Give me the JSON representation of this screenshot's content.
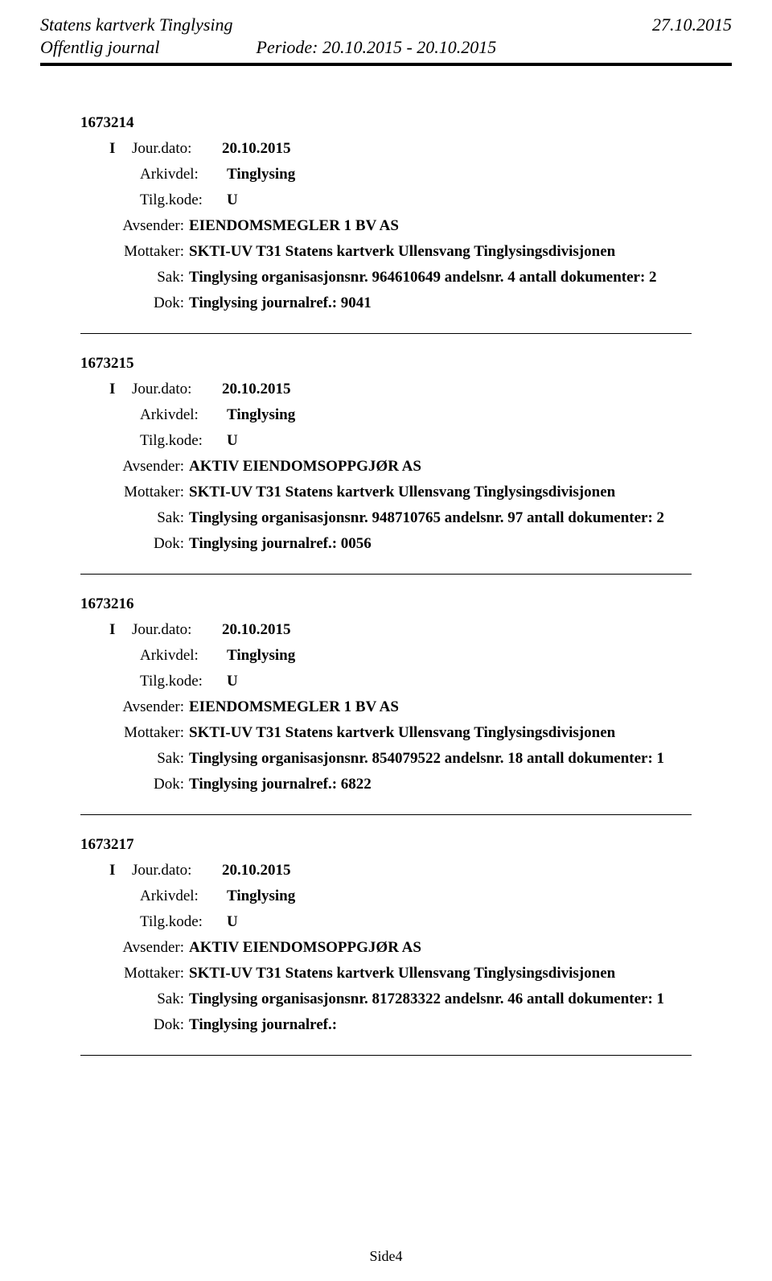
{
  "header": {
    "title_left": "Statens kartverk Tinglysing",
    "title_right": "27.10.2015",
    "subtitle": "Offentlig journal",
    "periode": "Periode: 20.10.2015 - 20.10.2015"
  },
  "labels": {
    "jour_dato": "Jour.dato:",
    "arkivdel": "Arkivdel:",
    "tilg_kode": "Tilg.kode:",
    "avsender": "Avsender:",
    "mottaker": "Mottaker:",
    "sak": "Sak:",
    "dok": "Dok:"
  },
  "entries": [
    {
      "id": "1673214",
      "type": "I",
      "jour_dato": "20.10.2015",
      "arkivdel": "Tinglysing",
      "tilg_kode": "U",
      "avsender": "EIENDOMSMEGLER 1 BV AS",
      "mottaker": "SKTI-UV T31 Statens kartverk Ullensvang Tinglysingsdivisjonen",
      "sak": "Tinglysing organisasjonsnr. 964610649 andelsnr. 4 antall dokumenter: 2",
      "dok": "Tinglysing journalref.: 9041"
    },
    {
      "id": "1673215",
      "type": "I",
      "jour_dato": "20.10.2015",
      "arkivdel": "Tinglysing",
      "tilg_kode": "U",
      "avsender": "AKTIV EIENDOMSOPPGJØR AS",
      "mottaker": "SKTI-UV T31 Statens kartverk Ullensvang Tinglysingsdivisjonen",
      "sak": "Tinglysing organisasjonsnr. 948710765 andelsnr. 97 antall dokumenter: 2",
      "dok": "Tinglysing journalref.: 0056"
    },
    {
      "id": "1673216",
      "type": "I",
      "jour_dato": "20.10.2015",
      "arkivdel": "Tinglysing",
      "tilg_kode": "U",
      "avsender": "EIENDOMSMEGLER 1 BV AS",
      "mottaker": "SKTI-UV T31 Statens kartverk Ullensvang Tinglysingsdivisjonen",
      "sak": "Tinglysing organisasjonsnr. 854079522 andelsnr. 18 antall dokumenter: 1",
      "dok": "Tinglysing journalref.: 6822"
    },
    {
      "id": "1673217",
      "type": "I",
      "jour_dato": "20.10.2015",
      "arkivdel": "Tinglysing",
      "tilg_kode": "U",
      "avsender": "AKTIV EIENDOMSOPPGJØR AS",
      "mottaker": "SKTI-UV T31 Statens kartverk Ullensvang Tinglysingsdivisjonen",
      "sak": "Tinglysing organisasjonsnr. 817283322 andelsnr. 46 antall dokumenter: 1",
      "dok": "Tinglysing journalref.:"
    }
  ],
  "footer": "Side4"
}
